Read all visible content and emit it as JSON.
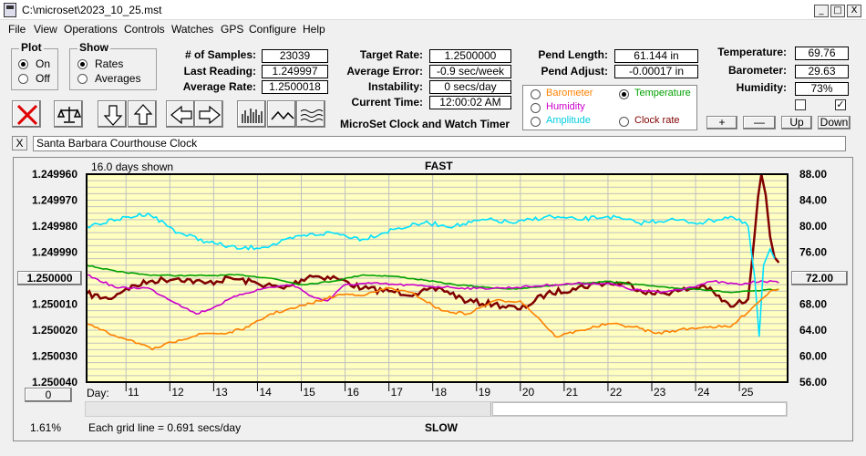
{
  "window": {
    "title": "C:\\microset\\2023_10_25.mst",
    "min": "_",
    "max": "□",
    "close": "X"
  },
  "menu": [
    "File",
    "View",
    "Operations",
    "Controls",
    "Watches",
    "GPS",
    "Configure",
    "Help"
  ],
  "plot_group": {
    "title": "Plot",
    "on": "On",
    "off": "Off",
    "selected": "On"
  },
  "show_group": {
    "title": "Show",
    "rates": "Rates",
    "averages": "Averages",
    "selected": "Rates"
  },
  "stats": {
    "samples_label": "# of Samples:",
    "samples": "23039",
    "last_label": "Last Reading:",
    "last": "1.249997",
    "avg_label": "Average Rate:",
    "avg": "1.2500018"
  },
  "targets": {
    "target_label": "Target Rate:",
    "target": "1.2500000",
    "error_label": "Average Error:",
    "error": "-0.9 sec/week",
    "instab_label": "Instability:",
    "instab": "0 secs/day",
    "time_label": "Current Time:",
    "time": "12:00:02 AM"
  },
  "app_caption": "MicroSet Clock and Watch Timer",
  "pendulum": {
    "length_label": "Pend Length:",
    "length": "61.144 in",
    "adjust_label": "Pend Adjust:",
    "adjust": "-0.00017 in"
  },
  "params": {
    "barometer": "Barometer",
    "temperature": "Temperature",
    "humidity": "Humidity",
    "amplitude": "Amplitude",
    "clock_rate": "Clock rate",
    "selected": "Temperature"
  },
  "environment": {
    "temp_label": "Temperature:",
    "temp": "69.76",
    "baro_label": "Barometer:",
    "baro": "29.63",
    "hum_label": "Humidity:",
    "hum": "73%",
    "check1": false,
    "check2": true
  },
  "adjust_buttons": {
    "plus": "+",
    "minus": "—",
    "up": "Up",
    "down": "Down"
  },
  "description": {
    "close": "X",
    "text": "Santa Barbara Courthouse Clock"
  },
  "colors": {
    "barometer": "#ff8000",
    "temperature": "#00a000",
    "humidity": "#cc00cc",
    "amplitude": "#00e0ff",
    "clock_rate": "#800000",
    "plot_bg": "#ffffc0"
  },
  "chart_data": {
    "type": "line",
    "top_label": "16.0 days shown",
    "fast_label": "FAST",
    "slow_label": "SLOW",
    "grid_note": "Each grid line = 0.691 secs/day",
    "percent": "1.61%",
    "day_label": "Day:",
    "left_axis": {
      "ticks": [
        "1.249960",
        "1.249970",
        "1.249980",
        "1.249990",
        "1.250000",
        "1.250010",
        "1.250020",
        "1.250030",
        "1.250040"
      ],
      "center": "1.250000",
      "range": [
        1.24996,
        1.25004
      ],
      "inverted": true
    },
    "right_axis": {
      "ticks": [
        "88.00",
        "84.00",
        "80.00",
        "76.00",
        "72.00",
        "68.00",
        "64.00",
        "60.00",
        "56.00"
      ],
      "center": "72.00",
      "range": [
        56,
        88
      ]
    },
    "zero_button": "0",
    "days": [
      "11",
      "12",
      "13",
      "14",
      "15",
      "16",
      "17",
      "18",
      "19",
      "20",
      "21",
      "22",
      "23",
      "24",
      "25"
    ],
    "x_range": [
      10.1,
      26.1
    ],
    "series": [
      {
        "name": "Clock rate",
        "color_key": "clock_rate",
        "x": [
          10.1,
          10.6,
          11.0,
          11.6,
          12.2,
          12.8,
          13.4,
          14.0,
          14.6,
          15.2,
          15.8,
          16.4,
          17.0,
          17.6,
          18.2,
          18.8,
          19.4,
          20.0,
          20.6,
          21.2,
          21.8,
          22.4,
          23.0,
          23.6,
          24.2,
          24.8,
          25.2,
          25.5,
          25.6,
          25.7,
          25.8,
          25.9
        ],
        "y": [
          1.250006,
          1.250008,
          1.250004,
          1.250001,
          1.25,
          1.250002,
          1.25,
          1.250002,
          1.250004,
          1.249999,
          1.25,
          1.250004,
          1.250005,
          1.250006,
          1.250004,
          1.250009,
          1.25001,
          1.250012,
          1.250006,
          1.250004,
          1.250002,
          1.250002,
          1.250006,
          1.250005,
          1.250003,
          1.250011,
          1.250008,
          1.249955,
          1.249968,
          1.249984,
          1.249992,
          1.249994
        ]
      },
      {
        "name": "Temperature",
        "color_key": "temperature",
        "x": [
          10.1,
          10.8,
          11.5,
          12.2,
          12.9,
          13.6,
          14.3,
          15.0,
          15.7,
          16.4,
          17.1,
          17.8,
          18.5,
          19.2,
          19.9,
          20.6,
          21.3,
          22.0,
          22.7,
          23.4,
          24.1,
          24.8,
          25.5,
          25.9
        ],
        "y": [
          74.0,
          73.0,
          72.5,
          72.4,
          72.4,
          72.5,
          72.0,
          71.0,
          71.5,
          72.5,
          72.3,
          71.7,
          71.0,
          70.6,
          70.3,
          70.8,
          71.2,
          71.5,
          71.0,
          70.5,
          70.3,
          69.8,
          70.1,
          70.3
        ]
      },
      {
        "name": "Humidity",
        "color_key": "humidity",
        "x": [
          10.1,
          10.8,
          11.5,
          12.2,
          12.6,
          13.0,
          13.6,
          14.2,
          14.8,
          15.3,
          15.6,
          16.0,
          16.6,
          17.2,
          17.8,
          18.4,
          19.0,
          19.6,
          20.2,
          20.8,
          21.4,
          22.0,
          22.6,
          23.2,
          23.8,
          24.4,
          25.0,
          25.5,
          25.9
        ],
        "y": [
          72.5,
          70.5,
          70.5,
          68.0,
          66.5,
          67.5,
          69.5,
          70.5,
          71.0,
          69.0,
          68.5,
          71.0,
          71.2,
          71.0,
          70.8,
          70.6,
          70.4,
          70.5,
          70.7,
          71.0,
          71.2,
          71.2,
          70.2,
          69.8,
          70.5,
          71.5,
          71.0,
          71.6,
          71.3
        ]
      },
      {
        "name": "Amplitude",
        "color_key": "amplitude",
        "x": [
          10.1,
          10.8,
          11.5,
          12.2,
          12.9,
          13.6,
          14.3,
          15.0,
          15.7,
          16.4,
          17.1,
          17.8,
          18.5,
          19.2,
          19.9,
          20.6,
          21.3,
          22.0,
          22.7,
          23.4,
          24.1,
          24.8,
          25.2,
          25.35,
          25.45,
          25.55,
          25.7,
          25.8
        ],
        "y": [
          80.0,
          81.0,
          82.0,
          79.0,
          77.5,
          76.5,
          77.0,
          78.5,
          79.0,
          78.0,
          79.5,
          80.5,
          80.0,
          81.0,
          80.5,
          81.5,
          81.0,
          81.5,
          80.5,
          81.0,
          80.5,
          81.5,
          80.0,
          72.0,
          63.0,
          74.0,
          76.5,
          75.0
        ]
      },
      {
        "name": "Barometer",
        "color_key": "barometer",
        "x": [
          10.1,
          10.6,
          11.1,
          11.6,
          12.2,
          12.8,
          13.3,
          13.8,
          14.3,
          14.9,
          15.4,
          15.9,
          16.5,
          17.0,
          17.6,
          18.2,
          18.8,
          19.4,
          20.0,
          20.4,
          20.8,
          21.4,
          22.0,
          22.6,
          23.1,
          23.6,
          24.2,
          24.8,
          25.3,
          25.7,
          25.9
        ],
        "y": [
          65.0,
          63.5,
          62.5,
          61.0,
          62.5,
          63.5,
          63.5,
          64.5,
          66.5,
          67.5,
          68.5,
          69.5,
          69.5,
          70.5,
          69.5,
          67.0,
          66.5,
          68.5,
          68.5,
          66.0,
          63.0,
          64.0,
          65.0,
          64.5,
          63.5,
          64.0,
          64.5,
          64.5,
          67.5,
          70.0,
          70.3
        ]
      }
    ]
  }
}
